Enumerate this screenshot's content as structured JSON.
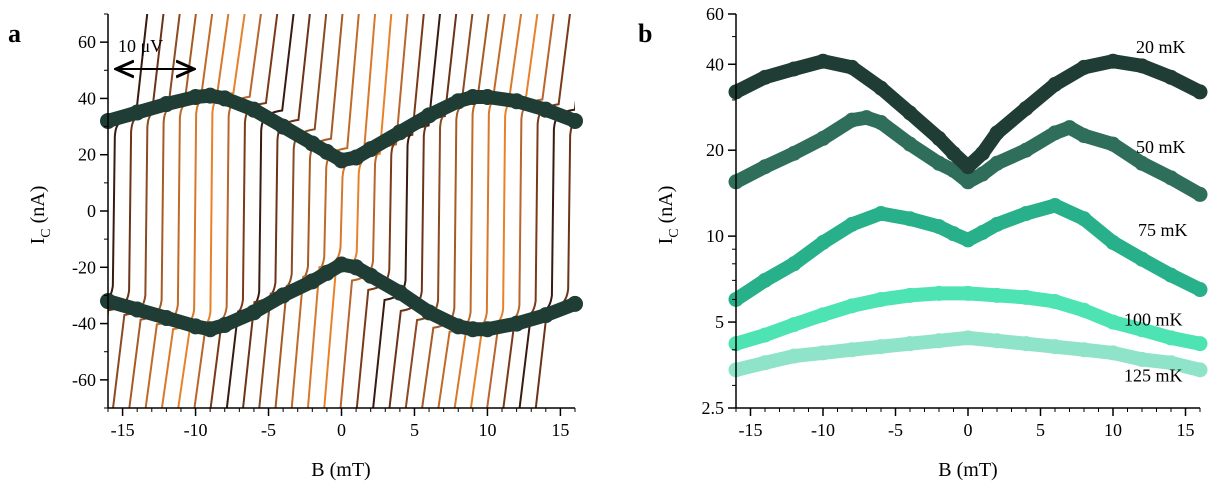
{
  "chart_data": [
    {
      "panel": "a",
      "type": "line",
      "xlabel": "B (mT)",
      "ylabel_main": "I",
      "ylabel_sub": "C",
      "ylabel_unit": " (nA)",
      "xlim": [
        -16,
        16
      ],
      "ylim": [
        -70,
        70
      ],
      "xticks": [
        -15,
        -10,
        -5,
        0,
        5,
        10,
        15
      ],
      "yticks": [
        -60,
        -40,
        -20,
        0,
        20,
        40,
        60
      ],
      "annotation": "10 μV",
      "trace_colors": [
        "#3a1a10",
        "#6b3318",
        "#8a4a22",
        "#a65a25",
        "#c06a28",
        "#d8782a",
        "#e8822a",
        "#b8652e",
        "#7a3a1a"
      ],
      "series": [
        {
          "role": "critical-current-positive",
          "color": "#1f3d34",
          "x": [
            -16,
            -14,
            -12,
            -10,
            -9,
            -8,
            -6,
            -4,
            -2,
            -1,
            0,
            1,
            2,
            4,
            6,
            8,
            9,
            10,
            12,
            14,
            16
          ],
          "y": [
            32,
            35,
            38,
            40.5,
            41,
            40,
            36,
            30,
            24,
            21,
            18,
            19,
            22,
            28,
            34,
            39,
            40.5,
            40.5,
            39,
            36,
            32
          ]
        },
        {
          "role": "critical-current-negative",
          "color": "#1f3d34",
          "x": [
            -16,
            -14,
            -12,
            -10,
            -9,
            -8,
            -6,
            -4,
            -2,
            -1,
            0,
            1,
            2,
            4,
            6,
            8,
            9,
            10,
            12,
            14,
            16
          ],
          "y": [
            -32,
            -35,
            -38,
            -41,
            -42,
            -40.5,
            -36,
            -30,
            -25,
            -22,
            -19,
            -20,
            -23,
            -29,
            -36,
            -41,
            -42,
            -42,
            -40,
            -37,
            -33
          ]
        }
      ]
    },
    {
      "panel": "b",
      "type": "scatter",
      "xlabel": "B (mT)",
      "ylabel_main": "I",
      "ylabel_sub": "C",
      "ylabel_unit": " (nA)",
      "yscale": "log",
      "xlim": [
        -16,
        16
      ],
      "ylim": [
        2.5,
        60
      ],
      "xticks": [
        -15,
        -10,
        -5,
        0,
        5,
        10,
        15
      ],
      "yticks": [
        2.5,
        5,
        10,
        20,
        40,
        60
      ],
      "series": [
        {
          "name": "20 mK",
          "color": "#1f3d34",
          "x": [
            -16,
            -14,
            -12,
            -10,
            -8,
            -6,
            -4,
            -2,
            -1,
            0,
            1,
            2,
            4,
            6,
            8,
            10,
            12,
            14,
            16
          ],
          "y": [
            32,
            36,
            38.5,
            41,
            39,
            33,
            27,
            22,
            19.5,
            17.5,
            19.5,
            23,
            28,
            34,
            39,
            41,
            39.5,
            36,
            32
          ]
        },
        {
          "name": "50 mK",
          "color": "#2f6e5a",
          "x": [
            -16,
            -14,
            -12,
            -10,
            -8,
            -7,
            -6,
            -4,
            -2,
            -1,
            0,
            1,
            2,
            4,
            6,
            7,
            8,
            10,
            12,
            14,
            16
          ],
          "y": [
            15.5,
            17.5,
            19.5,
            22,
            25.5,
            26,
            25,
            21,
            18,
            17,
            15.5,
            16.5,
            18,
            20,
            23,
            24,
            22.5,
            21,
            18,
            16,
            14
          ]
        },
        {
          "name": "75 mK",
          "color": "#27b08a",
          "x": [
            -16,
            -14,
            -12,
            -10,
            -8,
            -6,
            -4,
            -2,
            -1,
            0,
            1,
            2,
            4,
            6,
            8,
            10,
            12,
            14,
            16
          ],
          "y": [
            6,
            7,
            8,
            9.5,
            11,
            12,
            11.5,
            10.8,
            10.2,
            9.7,
            10.3,
            11,
            12,
            12.8,
            11.5,
            9.5,
            8.3,
            7.3,
            6.5
          ]
        },
        {
          "name": "100 mK",
          "color": "#4de3b2",
          "x": [
            -16,
            -14,
            -12,
            -10,
            -8,
            -6,
            -4,
            -2,
            0,
            2,
            4,
            6,
            8,
            10,
            12,
            14,
            16
          ],
          "y": [
            4.2,
            4.5,
            4.9,
            5.3,
            5.7,
            6.0,
            6.2,
            6.3,
            6.3,
            6.2,
            6.1,
            5.9,
            5.5,
            5.0,
            4.7,
            4.4,
            4.2
          ]
        },
        {
          "name": "125 mK",
          "color": "#8fe3c8",
          "x": [
            -16,
            -14,
            -12,
            -10,
            -8,
            -6,
            -4,
            -2,
            0,
            2,
            4,
            6,
            8,
            10,
            12,
            14,
            16
          ],
          "y": [
            3.4,
            3.6,
            3.8,
            3.9,
            4.0,
            4.1,
            4.2,
            4.3,
            4.4,
            4.3,
            4.2,
            4.1,
            4.0,
            3.9,
            3.7,
            3.6,
            3.4
          ]
        }
      ]
    }
  ]
}
